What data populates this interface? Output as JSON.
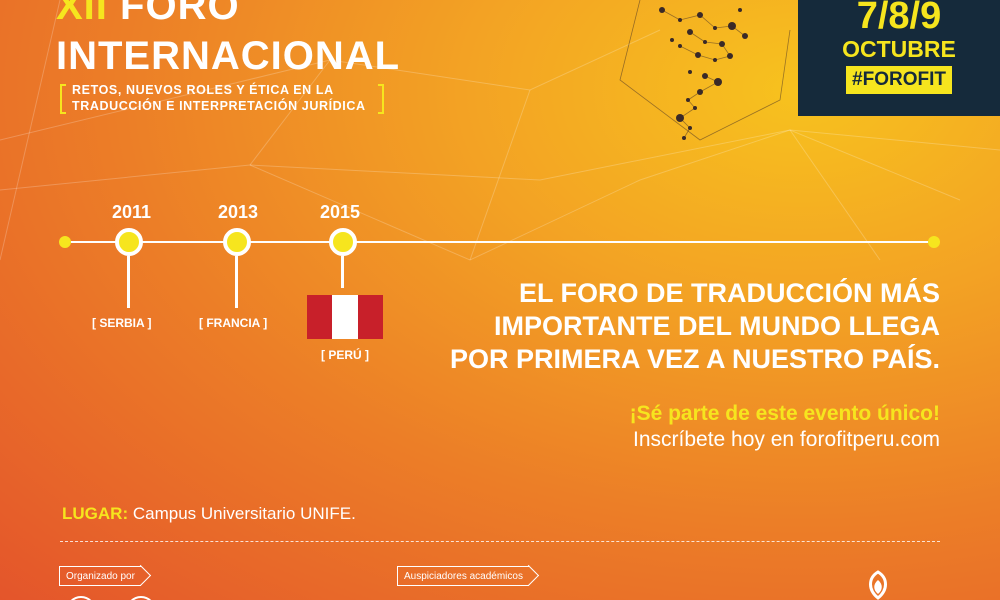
{
  "title": {
    "numeral": "XII",
    "word1": "FORO",
    "word2": "INTERNACIONAL",
    "subtitle_line1": "RETOS, NUEVOS ROLES Y ÉTICA EN LA",
    "subtitle_line2": "TRADUCCIÓN E INTERPRETACIÓN JURÍDICA"
  },
  "event": {
    "dates": "7/8/9",
    "month": "OCTUBRE",
    "hashtag": "#FOROFIT"
  },
  "timeline": [
    {
      "year": "2011",
      "location": "[ SERBIA ]"
    },
    {
      "year": "2013",
      "location": "[ FRANCIA ]"
    },
    {
      "year": "2015",
      "location": "[ PERÚ ]"
    }
  ],
  "headline": {
    "line1": "EL FORO DE TRADUCCIÓN MÁS",
    "line2": "IMPORTANTE DEL MUNDO LLEGA",
    "line3": "POR PRIMERA VEZ A NUESTRO PAÍS."
  },
  "cta": {
    "line1": "¡Sé parte de este evento único!",
    "line2": "Inscríbete hoy en forofitperu.com"
  },
  "venue": {
    "label": "LUGAR:",
    "value": "Campus Universitario UNIFE."
  },
  "footer": {
    "organized_by": "Organizado por",
    "sponsors": "Auspiciadores académicos"
  },
  "colors": {
    "accent_yellow": "#f6e51e",
    "navy": "#152a3b",
    "flag_red": "#c8202a"
  }
}
